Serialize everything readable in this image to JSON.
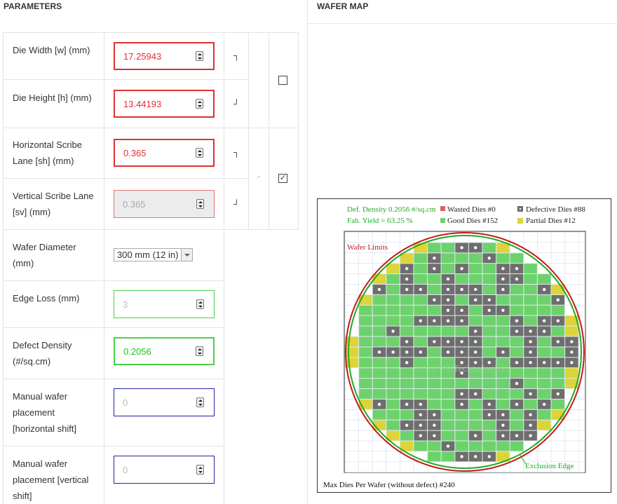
{
  "sections": {
    "parameters": "PARAMETERS",
    "wafer_map": "WAFER MAP"
  },
  "params": {
    "die_width": {
      "label": "Die Width [w] (mm)",
      "value": "17.25943"
    },
    "die_height": {
      "label": "Die Height [h] (mm)",
      "value": "13.44193"
    },
    "h_scribe": {
      "label": "Horizontal Scribe Lane [sh] (mm)",
      "value": "0.365"
    },
    "v_scribe": {
      "label": "Vertical Scribe Lane [sv] (mm)",
      "value": "0.365"
    },
    "wafer_diameter": {
      "label": "Wafer Diameter (mm)",
      "value": "300 mm (12 in)"
    },
    "edge_loss": {
      "label": "Edge Loss (mm)",
      "placeholder": "3"
    },
    "defect_density": {
      "label": "Defect Density (#/sq.cm)",
      "value": "0.2056"
    },
    "manual_h": {
      "label": "Manual wafer placement [horizontal shift]",
      "placeholder": "0"
    },
    "manual_v": {
      "label": "Manual wafer placement [vertical shift]",
      "placeholder": "0"
    }
  },
  "links": {
    "top": "┐",
    "bottom": "┘"
  },
  "checkboxes": {
    "die_lock": false,
    "scribe_lock": true,
    "check_glyph": "✓"
  },
  "map": {
    "def_density": "Def. Density 0.2056 #/sq.cm",
    "fab_yield": "Fab. Yield = 63.25 %",
    "wasted": "Wasted Dies  #0",
    "good": "Good Dies #152",
    "defective": "Defective Dies  #88",
    "partial": "Partial Dies #12",
    "wafer_limits": "Wafer Limits",
    "exclusion_edge": "Exclusion Edge",
    "watermark": "CALYX Technologies",
    "max_dies": "Max Dies Per Wafer (without defect) #240",
    "colors": {
      "good": "#6dd16d",
      "defective": "#6e6e6e",
      "partial": "#dcd43a",
      "wasted": "#e06060",
      "wafer": "#c21a1a",
      "exclusion": "#22aa22",
      "grid": "#c9d7e2",
      "text_green": "#22aa22",
      "text_red": "#c21a1a"
    }
  }
}
